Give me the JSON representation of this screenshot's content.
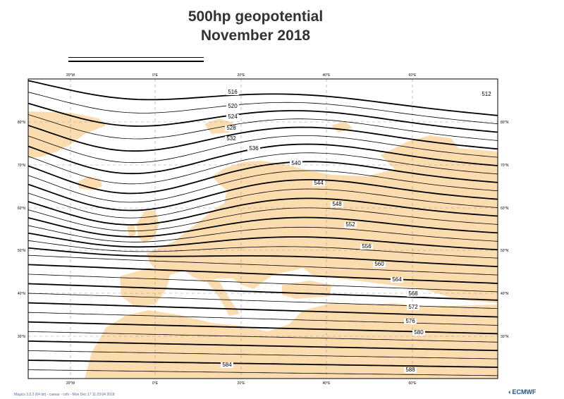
{
  "title_line1": "500hp geopotential",
  "title_line2": "November 2018",
  "footer_text": "Magics 3.2.2 (64 bit) - caesar - cxfv - Mon Dec 17 11:23:04 2018",
  "logo_text": "ECMWF",
  "colors": {
    "land": "#fbdcae",
    "sea": "#ffffff",
    "contour": "#000000",
    "grid": "#999999"
  },
  "axes": {
    "lon_labels": [
      "20°W",
      "0°E",
      "20°E",
      "40°E",
      "60°E"
    ],
    "lat_labels": [
      "80°N",
      "70°N",
      "60°N",
      "50°N",
      "40°N",
      "30°N"
    ]
  },
  "contour_labels": [
    "512",
    "516",
    "520",
    "524",
    "528",
    "532",
    "536",
    "540",
    "544",
    "548",
    "552",
    "556",
    "560",
    "564",
    "568",
    "572",
    "576",
    "580",
    "584",
    "588"
  ]
}
